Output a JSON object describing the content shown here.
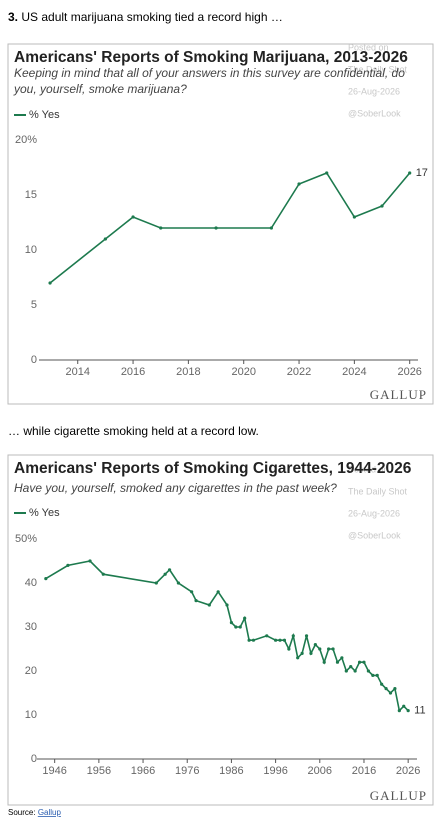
{
  "intro": {
    "number": "3.",
    "text": "US adult marijuana smoking tied a record high …"
  },
  "caption": "… while cigarette smoking held at a record low.",
  "source": {
    "label": "Source:",
    "link": "Gallup"
  },
  "chart_data": [
    {
      "type": "line",
      "title": "Americans' Reports of Smoking Marijuana, 2013-2026",
      "subtitle": [
        "Keeping in mind that all of your answers in this survey are confidential, do",
        "you, yourself, smoke marijuana?"
      ],
      "watermark": [
        "Posted on",
        "The Daily Shot",
        "26-Aug-2026",
        "@SoberLook"
      ],
      "brand": "GALLUP",
      "x": [
        2013,
        2015,
        2016,
        2017,
        2019,
        2021,
        2022,
        2023,
        2024,
        2025,
        2026
      ],
      "series": [
        {
          "name": "% Yes",
          "color": "#1d7a4e",
          "values": [
            7,
            11,
            13,
            12,
            12,
            12,
            16,
            17,
            13,
            14,
            17
          ]
        }
      ],
      "xlim": [
        2012.6,
        2026.3
      ],
      "ylim": [
        0,
        20
      ],
      "xticks": [
        2014,
        2016,
        2018,
        2020,
        2022,
        2024,
        2026
      ],
      "yticks": [
        0,
        5,
        10,
        15,
        {
          "value": 20,
          "label": "20%"
        }
      ],
      "grid": false
    },
    {
      "type": "line",
      "title": "Americans' Reports of Smoking Cigarettes, 1944-2026",
      "subtitle": [
        "Have you, yourself, smoked any cigarettes in the past week?"
      ],
      "watermark": [
        "Posted on",
        "The Daily Shot",
        "26-Aug-2026",
        "@SoberLook"
      ],
      "brand": "GALLUP",
      "x": [
        1944,
        1949,
        1954,
        1957,
        1969,
        1971,
        1972,
        1974,
        1977,
        1978,
        1981,
        1983,
        1985,
        1986,
        1987,
        1988,
        1989,
        1990,
        1991,
        1994,
        1996,
        1997,
        1998,
        1999,
        2000,
        2001,
        2002,
        2003,
        2004,
        2005,
        2006,
        2007,
        2008,
        2009,
        2010,
        2011,
        2012,
        2013,
        2014,
        2015,
        2016,
        2017,
        2018,
        2019,
        2020,
        2021,
        2022,
        2023,
        2024,
        2025,
        2026
      ],
      "series": [
        {
          "name": "% Yes",
          "color": "#1d7a4e",
          "values": [
            41,
            44,
            45,
            42,
            40,
            42,
            43,
            40,
            38,
            36,
            35,
            38,
            35,
            31,
            30,
            30,
            32,
            27,
            27,
            28,
            27,
            27,
            27,
            25,
            28,
            23,
            24,
            28,
            24,
            26,
            25,
            22,
            25,
            25,
            22,
            23,
            20,
            21,
            20,
            22,
            22,
            20,
            19,
            19,
            17,
            16,
            15,
            16,
            11,
            12,
            11
          ]
        }
      ],
      "xlim": [
        1942,
        2028
      ],
      "ylim": [
        0,
        50
      ],
      "xticks": [
        1946,
        1956,
        1966,
        1976,
        1986,
        1996,
        2006,
        2016,
        2026
      ],
      "yticks": [
        0,
        10,
        20,
        30,
        40,
        {
          "value": 50,
          "label": "50%"
        }
      ],
      "grid": false
    }
  ]
}
